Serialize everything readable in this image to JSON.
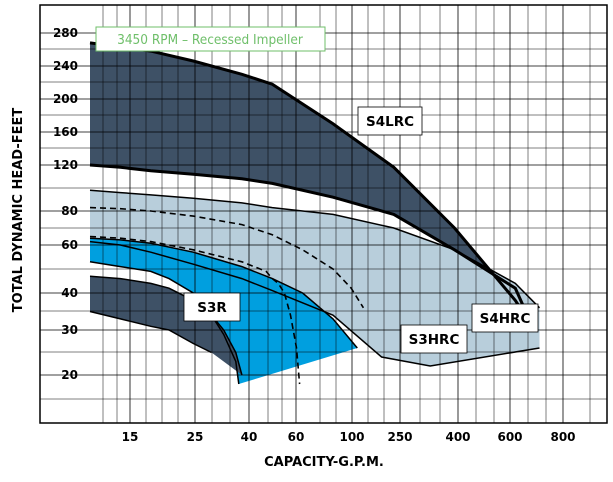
{
  "chart_data": {
    "type": "area",
    "title": "3450 RPM – Recessed Impeller",
    "xlabel": "CAPACITY-G.P.M.",
    "ylabel": "TOTAL DYNAMIC HEAD-FEET",
    "x_ticks": [
      "15",
      "25",
      "40",
      "60",
      "100",
      "250",
      "400",
      "600",
      "800"
    ],
    "y_ticks": [
      "280",
      "240",
      "200",
      "160",
      "120",
      "80",
      "60",
      "40",
      "30",
      "20"
    ],
    "grid": true,
    "series": [
      {
        "name": "S4LRC",
        "color": "#3e5166",
        "upper": [
          [
            0,
            268
          ],
          [
            50,
            263
          ],
          [
            100,
            258
          ],
          [
            170,
            246
          ],
          [
            250,
            230
          ],
          [
            300,
            218
          ],
          [
            400,
            170
          ],
          [
            500,
            118
          ],
          [
            600,
            70
          ],
          [
            700,
            38
          ],
          [
            720,
            33
          ]
        ],
        "lower": [
          [
            0,
            120
          ],
          [
            50,
            118
          ],
          [
            100,
            115
          ],
          [
            170,
            112
          ],
          [
            250,
            108
          ],
          [
            300,
            104
          ],
          [
            400,
            92
          ],
          [
            500,
            78
          ],
          [
            600,
            58
          ],
          [
            700,
            42
          ],
          [
            720,
            34
          ]
        ]
      },
      {
        "name": "S4HRC",
        "color": "#b8cedb",
        "upper": [
          [
            0,
            98
          ],
          [
            50,
            96
          ],
          [
            100,
            94
          ],
          [
            170,
            91
          ],
          [
            250,
            87
          ],
          [
            300,
            83
          ],
          [
            400,
            78
          ],
          [
            500,
            70
          ],
          [
            600,
            58
          ],
          [
            700,
            44
          ],
          [
            740,
            36
          ]
        ],
        "lower": [
          [
            0,
            62
          ],
          [
            50,
            60
          ],
          [
            100,
            57
          ],
          [
            170,
            52
          ],
          [
            250,
            46
          ],
          [
            300,
            41
          ],
          [
            400,
            34
          ],
          [
            480,
            24
          ],
          [
            560,
            22
          ],
          [
            740,
            26
          ]
        ]
      },
      {
        "name": "S3HRC",
        "color": "#009fdf",
        "upper": [
          [
            0,
            64
          ],
          [
            50,
            63
          ],
          [
            100,
            61
          ],
          [
            170,
            57
          ],
          [
            250,
            51
          ],
          [
            300,
            46
          ],
          [
            350,
            40
          ],
          [
            400,
            33
          ],
          [
            440,
            26
          ]
        ],
        "lower": [
          [
            0,
            53
          ],
          [
            50,
            51
          ],
          [
            100,
            49
          ],
          [
            130,
            46
          ],
          [
            170,
            40
          ],
          [
            200,
            34
          ],
          [
            220,
            29
          ],
          [
            240,
            23
          ],
          [
            245,
            18
          ]
        ]
      },
      {
        "name": "S3R",
        "color": "#3e5166",
        "upper": [
          [
            0,
            47
          ],
          [
            50,
            46
          ],
          [
            100,
            44
          ],
          [
            130,
            42
          ],
          [
            170,
            38
          ],
          [
            200,
            34
          ],
          [
            220,
            30
          ],
          [
            240,
            25
          ],
          [
            250,
            20
          ]
        ],
        "lower": [
          [
            0,
            35
          ],
          [
            50,
            33
          ],
          [
            100,
            31
          ],
          [
            130,
            30
          ],
          [
            170,
            27
          ],
          [
            200,
            25
          ]
        ]
      }
    ],
    "dashed_curves": [
      [
        [
          0,
          83
        ],
        [
          50,
          82
        ],
        [
          100,
          80
        ],
        [
          170,
          77
        ],
        [
          250,
          72
        ],
        [
          300,
          66
        ],
        [
          350,
          58
        ],
        [
          400,
          50
        ],
        [
          430,
          42
        ],
        [
          450,
          36
        ]
      ],
      [
        [
          0,
          65
        ],
        [
          50,
          64
        ],
        [
          100,
          62
        ],
        [
          170,
          58
        ],
        [
          250,
          53
        ],
        [
          290,
          49
        ],
        [
          300,
          46
        ],
        [
          310,
          44
        ],
        [
          320,
          40
        ],
        [
          330,
          34
        ],
        [
          340,
          26
        ],
        [
          345,
          18
        ]
      ]
    ]
  }
}
